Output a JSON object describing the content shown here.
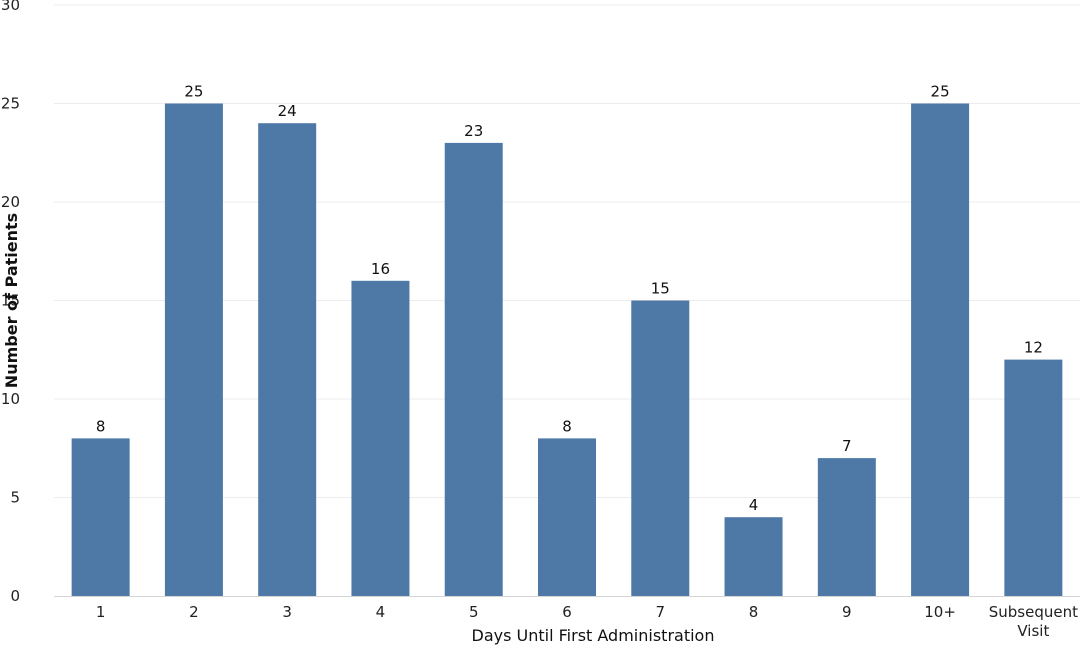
{
  "chart_data": {
    "type": "bar",
    "categories": [
      "1",
      "2",
      "3",
      "4",
      "5",
      "6",
      "7",
      "8",
      "9",
      "10+",
      "Subsequent Visit"
    ],
    "category_lines": [
      [
        "1"
      ],
      [
        "2"
      ],
      [
        "3"
      ],
      [
        "4"
      ],
      [
        "5"
      ],
      [
        "6"
      ],
      [
        "7"
      ],
      [
        "8"
      ],
      [
        "9"
      ],
      [
        "10+"
      ],
      [
        "Subsequent",
        "Visit"
      ]
    ],
    "values": [
      8,
      25,
      24,
      16,
      23,
      8,
      15,
      4,
      7,
      25,
      12
    ],
    "value_labels": [
      "8",
      "25",
      "24",
      "16",
      "23",
      "8",
      "15",
      "4",
      "7",
      "25",
      "12"
    ],
    "title": "",
    "xlabel": "Days Until First Administration",
    "ylabel": "Number of Patients",
    "ylim": [
      0,
      30
    ],
    "yticks": [
      0,
      5,
      10,
      15,
      20,
      25,
      30
    ],
    "grid": true,
    "legend": "none",
    "colors": {
      "bar": "#4e79a7",
      "grid": "#ececec",
      "axis": "#d4d4d4"
    }
  }
}
